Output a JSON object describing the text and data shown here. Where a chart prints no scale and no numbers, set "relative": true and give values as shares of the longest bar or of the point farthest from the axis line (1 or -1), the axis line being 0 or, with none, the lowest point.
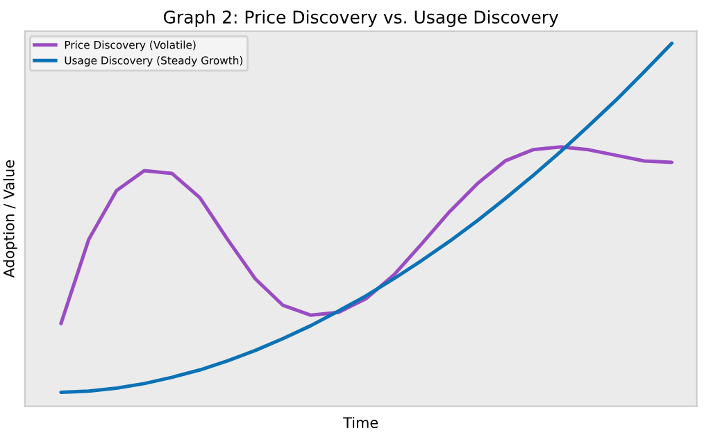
{
  "chart_data": {
    "type": "line",
    "title": "Graph 2: Price Discovery vs. Usage Discovery",
    "xlabel": "Time",
    "ylabel": "Adoption / Value",
    "relative": true,
    "legend": "top left",
    "grid": false,
    "marker": "none",
    "line_style": "solid",
    "categories": [
      null,
      null,
      null,
      null,
      null,
      null,
      null,
      null,
      null,
      null,
      null,
      null,
      null,
      null,
      null,
      null,
      null,
      null,
      null,
      null,
      null,
      null,
      null
    ],
    "series": [
      {
        "name": "Price Discovery (Volatile)",
        "color": "#9a4cc2",
        "values": [
          0.197,
          0.438,
          0.578,
          0.635,
          0.627,
          0.558,
          0.438,
          0.325,
          0.249,
          0.221,
          0.229,
          0.269,
          0.337,
          0.426,
          0.518,
          0.598,
          0.663,
          0.695,
          0.703,
          0.695,
          0.679,
          0.663,
          0.659
        ]
      },
      {
        "name": "Usage Discovery (Steady Growth)",
        "color": "#0b72b6",
        "values": [
          0,
          0.0033,
          0.0118,
          0.025,
          0.043,
          0.064,
          0.09,
          0.12,
          0.154,
          0.191,
          0.233,
          0.277,
          0.326,
          0.378,
          0.433,
          0.492,
          0.555,
          0.621,
          0.69,
          0.763,
          0.838,
          0.918,
          1
        ]
      }
    ]
  }
}
